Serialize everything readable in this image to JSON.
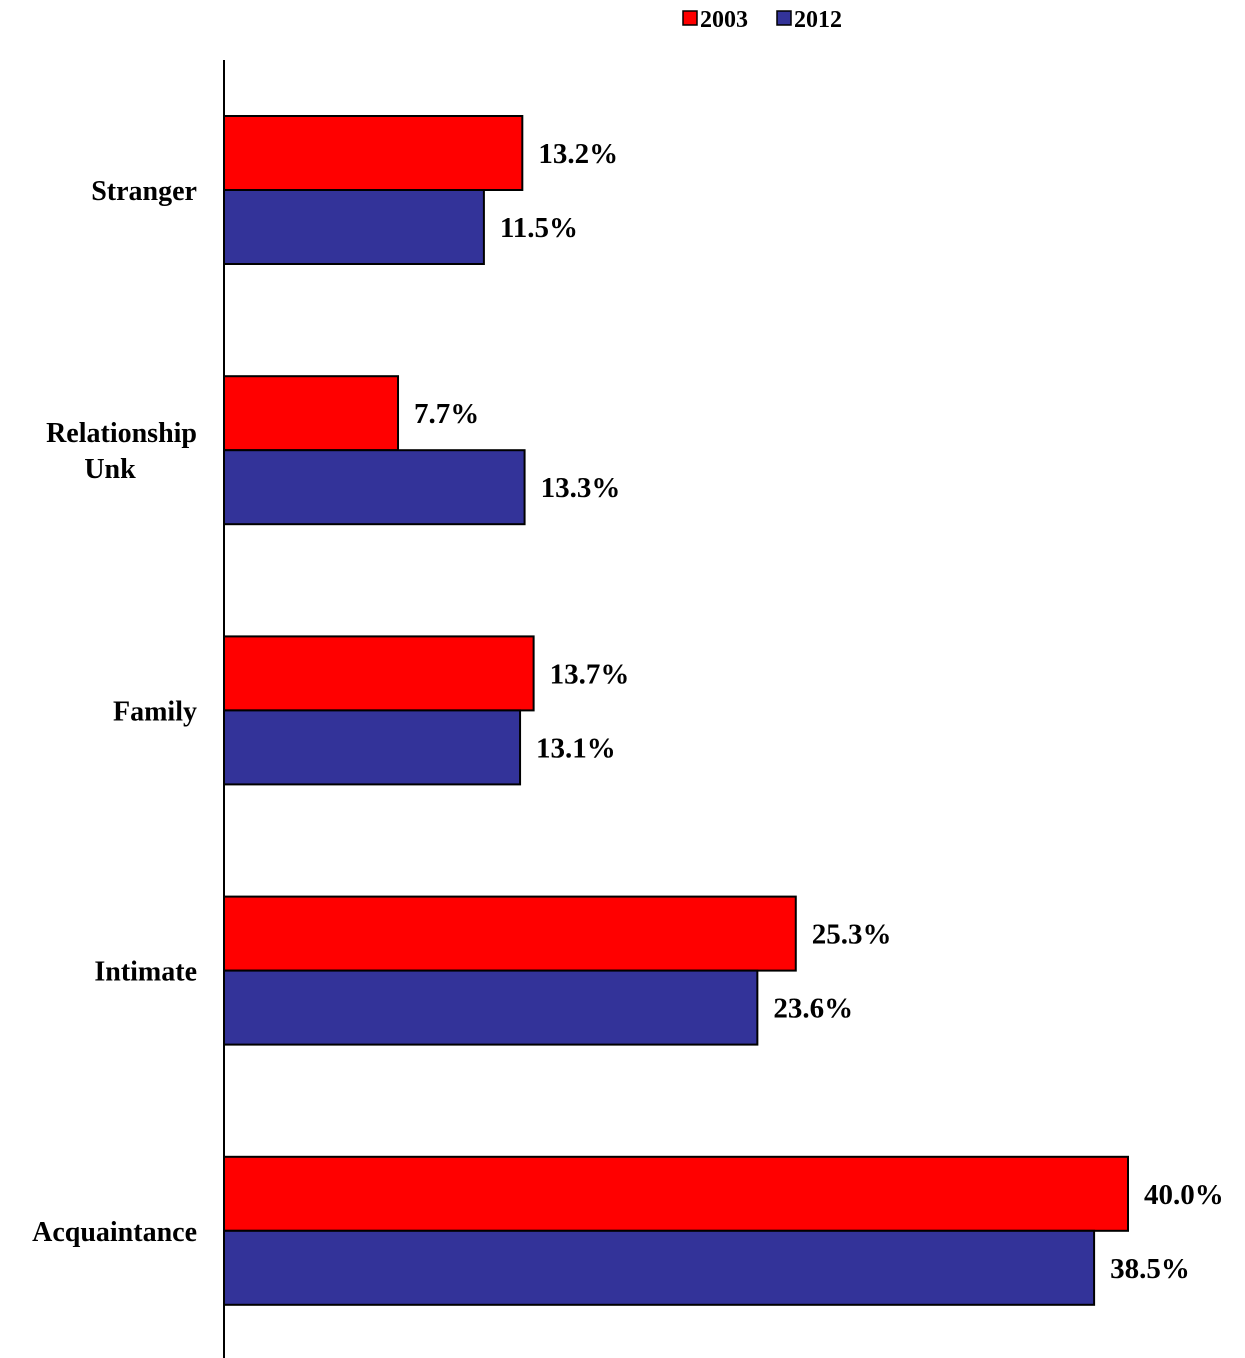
{
  "chart_data": {
    "type": "bar",
    "orientation": "horizontal",
    "categories": [
      "Stranger",
      "Relationship Unk",
      "Family",
      "Intimate",
      "Acquaintance"
    ],
    "category_lines": [
      [
        "Stranger"
      ],
      [
        "Relationship",
        "Unk"
      ],
      [
        "Family"
      ],
      [
        "Intimate"
      ],
      [
        "Acquaintance"
      ]
    ],
    "series": [
      {
        "name": "2003",
        "color": "#ff0000",
        "values": [
          13.2,
          7.7,
          13.7,
          25.3,
          40.0
        ],
        "labels": [
          "13.2%",
          "7.7%",
          "13.7%",
          "25.3%",
          "40.0%"
        ]
      },
      {
        "name": "2012",
        "color": "#333399",
        "values": [
          11.5,
          13.3,
          13.1,
          23.6,
          38.5
        ],
        "labels": [
          "11.5%",
          "13.3%",
          "13.1%",
          "23.6%",
          "38.5%"
        ]
      }
    ],
    "xlim": [
      0,
      40
    ],
    "grid": false,
    "legend_position": "top-center"
  }
}
